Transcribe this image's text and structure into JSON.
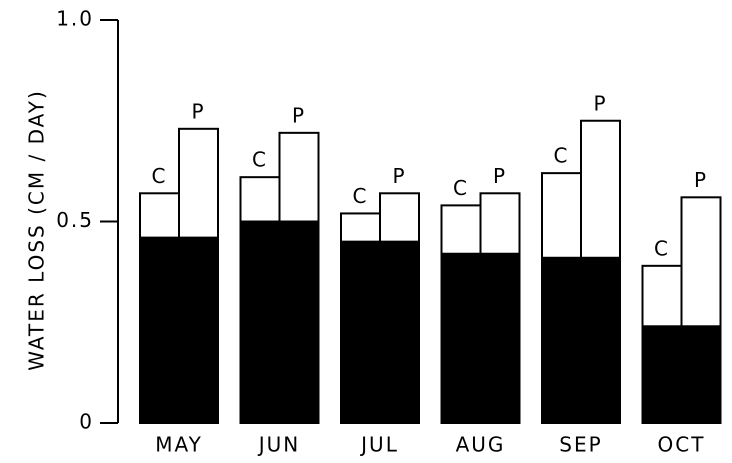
{
  "chart_data": {
    "type": "bar",
    "ylabel": "WATER LOSS  (CM / DAY)",
    "categories": [
      "MAY",
      "JUN",
      "JUL",
      "AUG",
      "SEP",
      "OCT"
    ],
    "base": {
      "color": "#000000",
      "values": [
        0.46,
        0.5,
        0.45,
        0.42,
        0.41,
        0.24
      ]
    },
    "series": [
      {
        "name": "C",
        "color": "#ffffff",
        "values": [
          0.11,
          0.11,
          0.07,
          0.12,
          0.21,
          0.15
        ]
      },
      {
        "name": "P",
        "color": "#ffffff",
        "values": [
          0.27,
          0.22,
          0.12,
          0.15,
          0.34,
          0.32
        ]
      }
    ],
    "ylim": [
      0,
      1
    ],
    "yticks": [
      0,
      0.5,
      {
        "value": 1,
        "label": "1.0"
      }
    ]
  }
}
